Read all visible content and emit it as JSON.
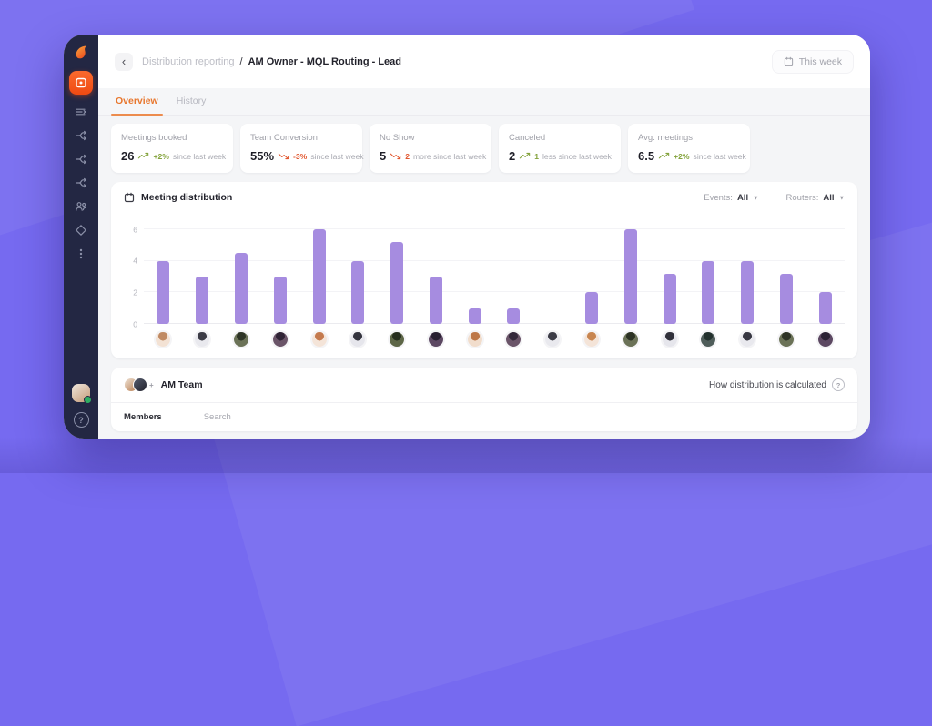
{
  "header": {
    "breadcrumb_parent": "Distribution reporting",
    "breadcrumb_separator": "/",
    "breadcrumb_current": "AM Owner - MQL Routing - Lead",
    "period_button": "This week"
  },
  "tabs": [
    {
      "label": "Overview",
      "active": true
    },
    {
      "label": "History",
      "active": false
    }
  ],
  "stats": [
    {
      "label": "Meetings booked",
      "value": "26",
      "direction": "up",
      "change": "+2%",
      "suffix": "since last week"
    },
    {
      "label": "Team Conversion",
      "value": "55%",
      "direction": "down",
      "change": "-3%",
      "suffix": "since last week"
    },
    {
      "label": "No Show",
      "value": "5",
      "direction": "down",
      "change": "2",
      "suffix": "more since last week"
    },
    {
      "label": "Canceled",
      "value": "2",
      "direction": "up",
      "change": "1",
      "suffix": "less since last week"
    },
    {
      "label": "Avg. meetings",
      "value": "6.5",
      "direction": "up",
      "change": "+2%",
      "suffix": "since last week"
    }
  ],
  "chart_card": {
    "title": "Meeting distribution",
    "filters": [
      {
        "label": "Events:",
        "value": "All"
      },
      {
        "label": "Routers:",
        "value": "All"
      }
    ]
  },
  "chart_data": {
    "type": "bar",
    "title": "Meeting distribution",
    "x_axis": "team members (avatar labels, no text)",
    "ylabel": "",
    "ylim": [
      0,
      6
    ],
    "yticks": [
      0,
      2,
      4,
      6
    ],
    "grid": "horizontal, faint",
    "bar_color": "#a68ce0",
    "values": [
      4,
      3,
      4.5,
      3,
      6,
      4,
      5.2,
      3,
      1,
      1,
      0,
      2,
      6,
      3.2,
      4,
      4,
      3.2,
      2
    ],
    "members": [
      {
        "avatar": [
          "#f3e2d4",
          "#c08a63"
        ]
      },
      {
        "avatar": [
          "#e9e9ee",
          "#3c3c46"
        ]
      },
      {
        "avatar": [
          "#6b7257",
          "#2e3426"
        ]
      },
      {
        "avatar": [
          "#6a5468",
          "#2f2335"
        ]
      },
      {
        "avatar": [
          "#f4e4d8",
          "#c47a4e"
        ]
      },
      {
        "avatar": [
          "#e6e6ec",
          "#34343e"
        ]
      },
      {
        "avatar": [
          "#5d6647",
          "#262e1e"
        ]
      },
      {
        "avatar": [
          "#5c4862",
          "#281f31"
        ]
      },
      {
        "avatar": [
          "#f1ddcc",
          "#bd7747"
        ]
      },
      {
        "avatar": [
          "#6a5468",
          "#33283a"
        ]
      },
      {
        "avatar": [
          "#e9e9ee",
          "#3c3c46"
        ]
      },
      {
        "avatar": [
          "#f4e4d8",
          "#c8854f"
        ]
      },
      {
        "avatar": [
          "#6b7257",
          "#2b3123"
        ]
      },
      {
        "avatar": [
          "#e6e6ec",
          "#30303a"
        ]
      },
      {
        "avatar": [
          "#4f5d5a",
          "#22302d"
        ]
      },
      {
        "avatar": [
          "#e9e9ee",
          "#383842"
        ]
      },
      {
        "avatar": [
          "#6b7257",
          "#2e3426"
        ]
      },
      {
        "avatar": [
          "#5c4862",
          "#2a2134"
        ]
      }
    ]
  },
  "team_card": {
    "title": "AM Team",
    "help_text": "How distribution is calculated",
    "column_label": "Members",
    "search_placeholder": "Search"
  },
  "sidebar": {
    "items": [
      {
        "name": "meetings",
        "icon": "board-icon",
        "active": true
      },
      {
        "name": "queues",
        "icon": "list-icon",
        "active": false
      },
      {
        "name": "routing-1",
        "icon": "split-icon",
        "active": false
      },
      {
        "name": "routing-2",
        "icon": "split-icon",
        "active": false
      },
      {
        "name": "routing-3",
        "icon": "split-icon",
        "active": false
      },
      {
        "name": "team",
        "icon": "people-icon",
        "active": false
      },
      {
        "name": "insights",
        "icon": "diamond-icon",
        "active": false
      },
      {
        "name": "integrations",
        "icon": "dots-icon",
        "active": false
      }
    ]
  },
  "colors": {
    "page_background": "#766af0",
    "sidebar_background": "#232743",
    "accent_orange": "#f2551c",
    "tab_active_orange": "#e8772e",
    "bar_purple": "#a68ce0",
    "positive_green": "#84a33c",
    "negative_red": "#e2572f",
    "status_online_green": "#2fae62"
  }
}
